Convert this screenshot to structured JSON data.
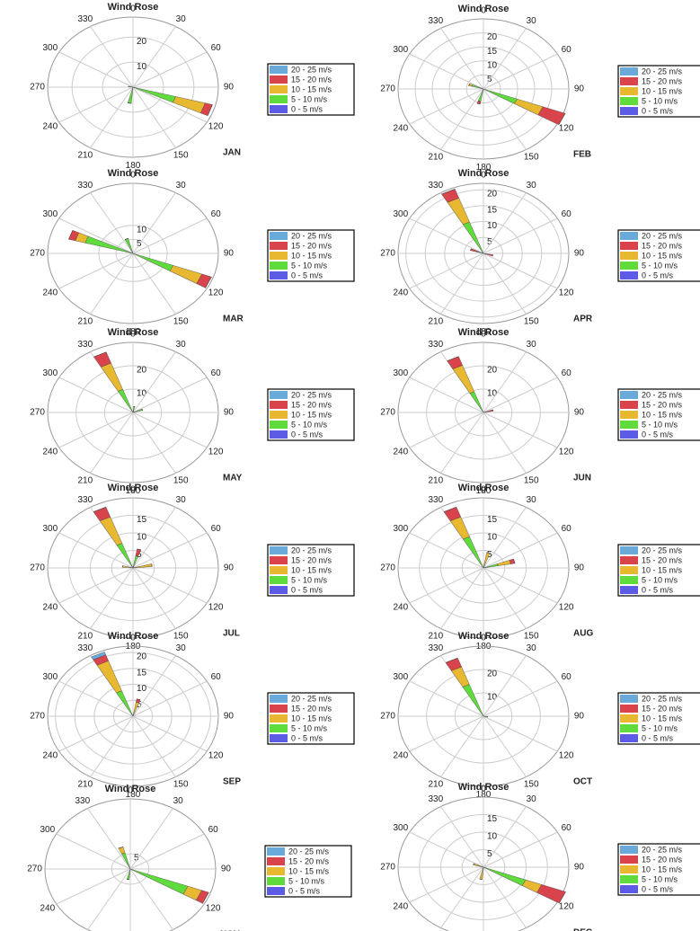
{
  "chart_data": [
    {
      "type": "wind_rose",
      "title": "Wind Rose",
      "label": "JAN",
      "rlim": [
        0,
        28
      ],
      "rticks": [
        10,
        20
      ],
      "thetaticks": [
        0,
        30,
        60,
        90,
        120,
        150,
        180,
        210,
        240,
        270,
        300,
        330
      ],
      "directions": [
        110,
        190,
        280
      ],
      "series": [
        {
          "name": "0 - 5 m/s",
          "color": "#5b5be6",
          "values": [
            0.5,
            0.5,
            0.5
          ]
        },
        {
          "name": "5 - 10 m/s",
          "color": "#5fdc3c",
          "values": [
            14,
            6,
            1
          ]
        },
        {
          "name": "10 - 15 m/s",
          "color": "#e8b830",
          "values": [
            10,
            0,
            0
          ]
        },
        {
          "name": "15 - 20 m/s",
          "color": "#d9434b",
          "values": [
            2.5,
            0,
            0
          ]
        },
        {
          "name": "20 - 25 m/s",
          "color": "#6aaadb",
          "values": [
            0,
            0,
            0
          ]
        }
      ]
    },
    {
      "type": "wind_rose",
      "title": "Wind Rose",
      "label": "FEB",
      "rlim": [
        0,
        25
      ],
      "rticks": [
        5,
        10,
        15,
        20
      ],
      "thetaticks": [
        0,
        30,
        60,
        90,
        120,
        150,
        180,
        210,
        240,
        270,
        300,
        330
      ],
      "directions": [
        115,
        195,
        290
      ],
      "series": [
        {
          "name": "0 - 5 m/s",
          "color": "#5b5be6",
          "values": [
            0.5,
            0.5,
            0.5
          ]
        },
        {
          "name": "5 - 10 m/s",
          "color": "#5fdc3c",
          "values": [
            10,
            4,
            3
          ]
        },
        {
          "name": "10 - 15 m/s",
          "color": "#e8b830",
          "values": [
            8,
            0,
            1
          ]
        },
        {
          "name": "15 - 20 m/s",
          "color": "#d9434b",
          "values": [
            7,
            1,
            0
          ]
        },
        {
          "name": "20 - 25 m/s",
          "color": "#6aaadb",
          "values": [
            0,
            0,
            0
          ]
        }
      ]
    },
    {
      "type": "wind_rose",
      "title": "Wind Rose",
      "label": "MAR",
      "rlim": [
        0,
        25
      ],
      "rticks": [
        5,
        10
      ],
      "thetaticks": [
        0,
        30,
        60,
        90,
        120,
        150,
        180,
        210,
        240,
        270,
        300,
        330
      ],
      "directions": [
        115,
        290,
        340
      ],
      "series": [
        {
          "name": "0 - 5 m/s",
          "color": "#5b5be6",
          "values": [
            0.5,
            0.5,
            0.5
          ]
        },
        {
          "name": "5 - 10 m/s",
          "color": "#5fdc3c",
          "values": [
            12,
            14,
            5
          ]
        },
        {
          "name": "10 - 15 m/s",
          "color": "#e8b830",
          "values": [
            9,
            3,
            0
          ]
        },
        {
          "name": "15 - 20 m/s",
          "color": "#d9434b",
          "values": [
            3,
            2,
            0
          ]
        },
        {
          "name": "20 - 25 m/s",
          "color": "#6aaadb",
          "values": [
            0,
            0,
            0
          ]
        }
      ]
    },
    {
      "type": "wind_rose",
      "title": "Wind Rose",
      "label": "APR",
      "rlim": [
        0,
        22
      ],
      "rticks": [
        5,
        10,
        15,
        20
      ],
      "thetaticks": [
        0,
        30,
        60,
        90,
        120,
        150,
        180,
        210,
        240,
        270,
        300,
        330
      ],
      "directions": [
        335,
        290,
        105
      ],
      "series": [
        {
          "name": "0 - 5 m/s",
          "color": "#5b5be6",
          "values": [
            0.5,
            0.5,
            0.5
          ]
        },
        {
          "name": "5 - 10 m/s",
          "color": "#5fdc3c",
          "values": [
            10,
            1,
            0
          ]
        },
        {
          "name": "10 - 15 m/s",
          "color": "#e8b830",
          "values": [
            8,
            0,
            0
          ]
        },
        {
          "name": "15 - 20 m/s",
          "color": "#d9434b",
          "values": [
            3,
            2,
            2
          ]
        },
        {
          "name": "20 - 25 m/s",
          "color": "#6aaadb",
          "values": [
            0,
            0,
            0
          ]
        }
      ]
    },
    {
      "type": "wind_rose",
      "title": "Wind Rose",
      "label": "MAY",
      "rlim": [
        0,
        30
      ],
      "rticks": [
        10,
        20
      ],
      "thetaticks": [
        0,
        30,
        60,
        90,
        120,
        150,
        180,
        210,
        240,
        270,
        300,
        330
      ],
      "directions": [
        335,
        70,
        10
      ],
      "series": [
        {
          "name": "0 - 5 m/s",
          "color": "#5b5be6",
          "values": [
            0.5,
            0.5,
            0.5
          ]
        },
        {
          "name": "5 - 10 m/s",
          "color": "#5fdc3c",
          "values": [
            10,
            3,
            2
          ]
        },
        {
          "name": "10 - 15 m/s",
          "color": "#e8b830",
          "values": [
            12,
            0,
            0
          ]
        },
        {
          "name": "15 - 20 m/s",
          "color": "#d9434b",
          "values": [
            5,
            0,
            0
          ]
        },
        {
          "name": "20 - 25 m/s",
          "color": "#6aaadb",
          "values": [
            0,
            0,
            0
          ]
        }
      ]
    },
    {
      "type": "wind_rose",
      "title": "Wind Rose",
      "label": "JUN",
      "rlim": [
        0,
        30
      ],
      "rticks": [
        10,
        20
      ],
      "thetaticks": [
        0,
        30,
        60,
        90,
        120,
        150,
        180,
        210,
        240,
        270,
        300,
        330
      ],
      "directions": [
        335,
        75
      ],
      "series": [
        {
          "name": "0 - 5 m/s",
          "color": "#5b5be6",
          "values": [
            0.5,
            0.5
          ]
        },
        {
          "name": "5 - 10 m/s",
          "color": "#5fdc3c",
          "values": [
            9,
            0
          ]
        },
        {
          "name": "10 - 15 m/s",
          "color": "#e8b830",
          "values": [
            12,
            0
          ]
        },
        {
          "name": "15 - 20 m/s",
          "color": "#d9434b",
          "values": [
            4,
            3
          ]
        },
        {
          "name": "20 - 25 m/s",
          "color": "#6aaadb",
          "values": [
            0,
            0
          ]
        }
      ]
    },
    {
      "type": "wind_rose",
      "title": "Wind Rose",
      "label": "JUL",
      "rlim": [
        0,
        20
      ],
      "rticks": [
        5,
        10,
        15
      ],
      "thetaticks": [
        0,
        30,
        60,
        90,
        120,
        150,
        180,
        210,
        240,
        270,
        300,
        330
      ],
      "directions": [
        335,
        15,
        80,
        280
      ],
      "series": [
        {
          "name": "0 - 5 m/s",
          "color": "#5b5be6",
          "values": [
            0.5,
            0.5,
            0.5,
            0.5
          ]
        },
        {
          "name": "5 - 10 m/s",
          "color": "#5fdc3c",
          "values": [
            7,
            3,
            0,
            0
          ]
        },
        {
          "name": "10 - 15 m/s",
          "color": "#e8b830",
          "values": [
            8,
            0,
            4,
            2
          ]
        },
        {
          "name": "15 - 20 m/s",
          "color": "#d9434b",
          "values": [
            3,
            2,
            0,
            0
          ]
        },
        {
          "name": "20 - 25 m/s",
          "color": "#6aaadb",
          "values": [
            0,
            0,
            0,
            0
          ]
        }
      ]
    },
    {
      "type": "wind_rose",
      "title": "Wind Rose",
      "label": "AUG",
      "rlim": [
        0,
        20
      ],
      "rticks": [
        5,
        10,
        15
      ],
      "thetaticks": [
        0,
        30,
        60,
        90,
        120,
        150,
        180,
        210,
        240,
        270,
        300,
        330
      ],
      "directions": [
        335,
        15,
        75
      ],
      "series": [
        {
          "name": "0 - 5 m/s",
          "color": "#5b5be6",
          "values": [
            0.5,
            0.5,
            0.5
          ]
        },
        {
          "name": "5 - 10 m/s",
          "color": "#5fdc3c",
          "values": [
            9,
            0,
            3
          ]
        },
        {
          "name": "10 - 15 m/s",
          "color": "#e8b830",
          "values": [
            6,
            4,
            3
          ]
        },
        {
          "name": "15 - 20 m/s",
          "color": "#d9434b",
          "values": [
            3,
            0,
            1
          ]
        },
        {
          "name": "20 - 25 m/s",
          "color": "#6aaadb",
          "values": [
            0,
            0,
            0
          ]
        }
      ]
    },
    {
      "type": "wind_rose",
      "title": "Wind Rose",
      "label": "SEP",
      "rlim": [
        0,
        22
      ],
      "rticks": [
        5,
        10,
        15,
        20
      ],
      "thetaticks": [
        0,
        30,
        60,
        90,
        120,
        150,
        180,
        210,
        240,
        270,
        300,
        330
      ],
      "directions": [
        335,
        15
      ],
      "series": [
        {
          "name": "0 - 5 m/s",
          "color": "#5b5be6",
          "values": [
            0.5,
            0.5
          ]
        },
        {
          "name": "5 - 10 m/s",
          "color": "#5fdc3c",
          "values": [
            8,
            0
          ]
        },
        {
          "name": "10 - 15 m/s",
          "color": "#e8b830",
          "values": [
            10,
            4
          ]
        },
        {
          "name": "15 - 20 m/s",
          "color": "#d9434b",
          "values": [
            2,
            1
          ]
        },
        {
          "name": "20 - 25 m/s",
          "color": "#6aaadb",
          "values": [
            1,
            0
          ]
        }
      ]
    },
    {
      "type": "wind_rose",
      "title": "Wind Rose",
      "label": "OCT",
      "rlim": [
        0,
        30
      ],
      "rticks": [
        10,
        20
      ],
      "thetaticks": [
        0,
        30,
        60,
        90,
        120,
        150,
        180,
        210,
        240,
        270,
        300,
        330
      ],
      "directions": [
        335,
        100
      ],
      "series": [
        {
          "name": "0 - 5 m/s",
          "color": "#5b5be6",
          "values": [
            0.5,
            0.5
          ]
        },
        {
          "name": "5 - 10 m/s",
          "color": "#5fdc3c",
          "values": [
            14,
            1
          ]
        },
        {
          "name": "10 - 15 m/s",
          "color": "#e8b830",
          "values": [
            8,
            0
          ]
        },
        {
          "name": "15 - 20 m/s",
          "color": "#d9434b",
          "values": [
            4,
            0
          ]
        },
        {
          "name": "20 - 25 m/s",
          "color": "#6aaadb",
          "values": [
            0,
            0
          ]
        }
      ]
    },
    {
      "type": "wind_rose",
      "title": "Wind Rose",
      "label": "NOV",
      "rlim": [
        0,
        23
      ],
      "rticks": [
        5
      ],
      "thetaticks": [
        0,
        30,
        60,
        90,
        120,
        150,
        180,
        210,
        240,
        270,
        300,
        330
      ],
      "directions": [
        115,
        340,
        190
      ],
      "series": [
        {
          "name": "0 - 5 m/s",
          "color": "#5b5be6",
          "values": [
            0.5,
            0.5,
            0.5
          ]
        },
        {
          "name": "5 - 10 m/s",
          "color": "#5fdc3c",
          "values": [
            16,
            5,
            3
          ]
        },
        {
          "name": "10 - 15 m/s",
          "color": "#e8b830",
          "values": [
            4,
            2,
            0
          ]
        },
        {
          "name": "15 - 20 m/s",
          "color": "#d9434b",
          "values": [
            2,
            0,
            0
          ]
        },
        {
          "name": "20 - 25 m/s",
          "color": "#6aaadb",
          "values": [
            0,
            0,
            0
          ]
        }
      ]
    },
    {
      "type": "wind_rose",
      "title": "Wind Rose",
      "label": "DEC",
      "rlim": [
        0,
        20
      ],
      "rticks": [
        5,
        10,
        15
      ],
      "thetaticks": [
        0,
        30,
        60,
        90,
        120,
        150,
        180,
        210,
        240,
        270,
        300,
        330
      ],
      "directions": [
        115,
        190,
        290
      ],
      "series": [
        {
          "name": "0 - 5 m/s",
          "color": "#5b5be6",
          "values": [
            0.5,
            0.5,
            0.5
          ]
        },
        {
          "name": "5 - 10 m/s",
          "color": "#5fdc3c",
          "values": [
            10,
            0,
            0
          ]
        },
        {
          "name": "10 - 15 m/s",
          "color": "#e8b830",
          "values": [
            4,
            3,
            2
          ]
        },
        {
          "name": "15 - 20 m/s",
          "color": "#d9434b",
          "values": [
            6,
            0,
            0
          ]
        },
        {
          "name": "20 - 25 m/s",
          "color": "#6aaadb",
          "values": [
            0,
            0,
            0
          ]
        }
      ]
    }
  ]
}
